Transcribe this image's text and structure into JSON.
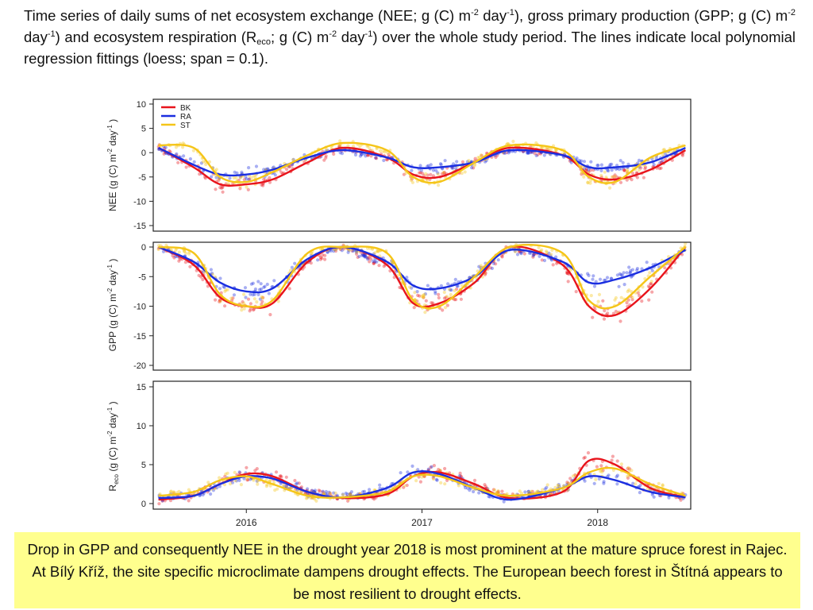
{
  "caption": {
    "p1": "Time series of daily sums of net ecosystem exchange (NEE; g (C) m",
    "s1": "-2",
    "p2": " day",
    "s2": "-1",
    "p3": "), gross primary production (GPP; g (C) m",
    "s3": "-2",
    "p4": " day",
    "s4": "-1",
    "p5": ") and ecosystem respiration (R",
    "sub": "eco",
    "p6": "; g (C) m",
    "s5": "-2",
    "p7": " day",
    "s6": "-1",
    "p8": ") over the whole study period. The lines indicate local polynomial regression fittings (loess; span = 0.1)."
  },
  "note": "Drop in GPP and consequently NEE in the drought year 2018 is most prominent at the mature spruce forest in Rajec. At Bílý Kříž, the site specific microclimate dampens drought effects. The European beech forest in Štítná appears to be most resilient to drought effects.",
  "colors": {
    "BK": "#e8141c",
    "RA": "#1a2ee0",
    "ST": "#f5c518",
    "frame": "#222222"
  },
  "chart_data": [
    {
      "type": "scatter",
      "panel": "NEE",
      "ylabel": "NEE (g (C) m⁻² day⁻¹ )",
      "ylabel_parts": {
        "a": "NEE (g (C) m",
        "b": "-2",
        "c": " day",
        "d": "-1",
        "e": " )"
      },
      "ylim": [
        -15,
        10
      ],
      "yticks": [
        -15,
        -10,
        -5,
        0,
        5,
        10
      ],
      "legend": {
        "position": "top-left",
        "entries": [
          "BK",
          "RA",
          "ST"
        ]
      },
      "series": [
        {
          "name": "BK",
          "x": [
            2015.5,
            2015.7,
            2015.85,
            2016.0,
            2016.15,
            2016.35,
            2016.55,
            2016.8,
            2016.95,
            2017.1,
            2017.3,
            2017.5,
            2017.8,
            2017.95,
            2018.1,
            2018.3,
            2018.5
          ],
          "y": [
            1,
            -3,
            -6.5,
            -6.5,
            -5.5,
            -2,
            1,
            -1,
            -4.5,
            -5,
            -2,
            1,
            -0.5,
            -4.5,
            -5.5,
            -3.5,
            0.5
          ]
        },
        {
          "name": "RA",
          "x": [
            2015.5,
            2015.7,
            2015.85,
            2016.0,
            2016.15,
            2016.35,
            2016.55,
            2016.8,
            2016.95,
            2017.1,
            2017.3,
            2017.5,
            2017.8,
            2017.95,
            2018.1,
            2018.3,
            2018.5
          ],
          "y": [
            1,
            -2.5,
            -4.5,
            -4.5,
            -3.5,
            -1,
            0.5,
            -1,
            -3,
            -3,
            -2,
            0.5,
            -0.5,
            -3,
            -3,
            -2,
            1
          ]
        },
        {
          "name": "ST",
          "x": [
            2015.5,
            2015.7,
            2015.85,
            2016.0,
            2016.15,
            2016.35,
            2016.55,
            2016.8,
            2016.95,
            2017.1,
            2017.3,
            2017.5,
            2017.8,
            2017.95,
            2018.1,
            2018.3,
            2018.5
          ],
          "y": [
            1.5,
            1,
            -5,
            -6,
            -4,
            -0.5,
            2,
            0.5,
            -5,
            -6,
            -2,
            1.5,
            0.5,
            -5,
            -6,
            -1,
            1.5
          ]
        }
      ]
    },
    {
      "type": "scatter",
      "panel": "GPP",
      "ylabel": "GPP (g (C) m⁻² day⁻¹ )",
      "ylabel_parts": {
        "a": "GPP (g (C) m",
        "b": "-2",
        "c": " day",
        "d": "-1",
        "e": " )"
      },
      "ylim": [
        -20,
        0
      ],
      "yticks": [
        -20,
        -15,
        -10,
        -5,
        0
      ],
      "series": [
        {
          "name": "BK",
          "x": [
            2015.5,
            2015.7,
            2015.85,
            2016.0,
            2016.15,
            2016.35,
            2016.55,
            2016.8,
            2016.95,
            2017.1,
            2017.3,
            2017.5,
            2017.8,
            2017.95,
            2018.1,
            2018.3,
            2018.5
          ],
          "y": [
            0,
            -3,
            -8.5,
            -10,
            -9.5,
            -2.5,
            0,
            -3,
            -9.5,
            -9.5,
            -6,
            0,
            -3,
            -10,
            -11.5,
            -7,
            0
          ]
        },
        {
          "name": "RA",
          "x": [
            2015.5,
            2015.7,
            2015.85,
            2016.0,
            2016.15,
            2016.35,
            2016.55,
            2016.8,
            2016.95,
            2017.1,
            2017.3,
            2017.5,
            2017.8,
            2017.95,
            2018.1,
            2018.3,
            2018.5
          ],
          "y": [
            0,
            -2.5,
            -6,
            -7.5,
            -7,
            -2,
            0,
            -2.5,
            -6.5,
            -7,
            -5,
            -0.5,
            -2.5,
            -6,
            -5.5,
            -3.5,
            -0.5
          ]
        },
        {
          "name": "ST",
          "x": [
            2015.5,
            2015.7,
            2015.85,
            2016.0,
            2016.15,
            2016.35,
            2016.55,
            2016.8,
            2016.95,
            2017.1,
            2017.3,
            2017.5,
            2017.8,
            2017.95,
            2018.1,
            2018.3,
            2018.5
          ],
          "y": [
            0,
            -1,
            -8,
            -10,
            -9,
            -1,
            0,
            -1,
            -9,
            -10,
            -5,
            0,
            -1,
            -9,
            -10,
            -5,
            0
          ]
        }
      ]
    },
    {
      "type": "scatter",
      "panel": "Reco",
      "ylabel": "Reco (g (C) m⁻² day⁻¹ )",
      "ylabel_parts": {
        "a": "R",
        "sub": "eco",
        "a2": " (g (C) m",
        "b": "-2",
        "c": " day",
        "d": "-1",
        "e": " )"
      },
      "ylim": [
        0,
        15
      ],
      "yticks": [
        0,
        5,
        10,
        15
      ],
      "xticks": [
        2016,
        2017,
        2018
      ],
      "xlim": [
        2015.47,
        2018.53
      ],
      "series": [
        {
          "name": "BK",
          "x": [
            2015.5,
            2015.7,
            2015.85,
            2016.0,
            2016.15,
            2016.35,
            2016.55,
            2016.8,
            2016.95,
            2017.1,
            2017.3,
            2017.5,
            2017.8,
            2017.95,
            2018.1,
            2018.3,
            2018.5
          ],
          "y": [
            0.5,
            1,
            2.5,
            3.8,
            3.5,
            1.5,
            0.7,
            1.2,
            3.5,
            4,
            2.5,
            0.7,
            1.5,
            5.5,
            5,
            2,
            0.8
          ]
        },
        {
          "name": "RA",
          "x": [
            2015.5,
            2015.7,
            2015.85,
            2016.0,
            2016.15,
            2016.35,
            2016.55,
            2016.8,
            2016.95,
            2017.1,
            2017.3,
            2017.5,
            2017.8,
            2017.95,
            2018.1,
            2018.3,
            2018.5
          ],
          "y": [
            0.7,
            1,
            2.5,
            3.5,
            3.2,
            1.5,
            0.8,
            2,
            4,
            3.8,
            2,
            0.5,
            2,
            3.5,
            3,
            1.5,
            0.8
          ]
        },
        {
          "name": "ST",
          "x": [
            2015.5,
            2015.7,
            2015.85,
            2016.0,
            2016.15,
            2016.35,
            2016.55,
            2016.8,
            2016.95,
            2017.1,
            2017.3,
            2017.5,
            2017.8,
            2017.95,
            2018.1,
            2018.3,
            2018.5
          ],
          "y": [
            1,
            1.5,
            3,
            3.5,
            2.5,
            1,
            0.8,
            1.5,
            3.5,
            3.5,
            2,
            1,
            2,
            4,
            4.5,
            2.5,
            1
          ]
        }
      ]
    }
  ]
}
